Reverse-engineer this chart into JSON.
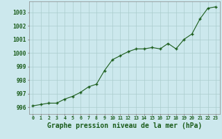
{
  "x": [
    0,
    1,
    2,
    3,
    4,
    5,
    6,
    7,
    8,
    9,
    10,
    11,
    12,
    13,
    14,
    15,
    16,
    17,
    18,
    19,
    20,
    21,
    22,
    23
  ],
  "y": [
    996.1,
    996.2,
    996.3,
    996.3,
    996.6,
    996.8,
    997.1,
    997.5,
    997.7,
    998.7,
    999.5,
    999.8,
    1000.1,
    1000.3,
    1000.3,
    1000.4,
    1000.3,
    1000.7,
    1000.3,
    1001.0,
    1001.4,
    1002.5,
    1003.3,
    1003.4
  ],
  "line_color": "#1a5c1a",
  "marker_color": "#1a5c1a",
  "bg_color": "#cce8ed",
  "grid_color": "#aacccc",
  "title": "Graphe pression niveau de la mer (hPa)",
  "title_fontsize": 7.0,
  "ylabel_ticks": [
    996,
    997,
    998,
    999,
    1000,
    1001,
    1002,
    1003
  ],
  "xlim": [
    -0.5,
    23.5
  ],
  "ylim": [
    995.5,
    1003.8
  ],
  "tick_label_color": "#1a5c1a",
  "axis_color": "#888888",
  "xtick_fontsize": 4.8,
  "ytick_fontsize": 5.8
}
